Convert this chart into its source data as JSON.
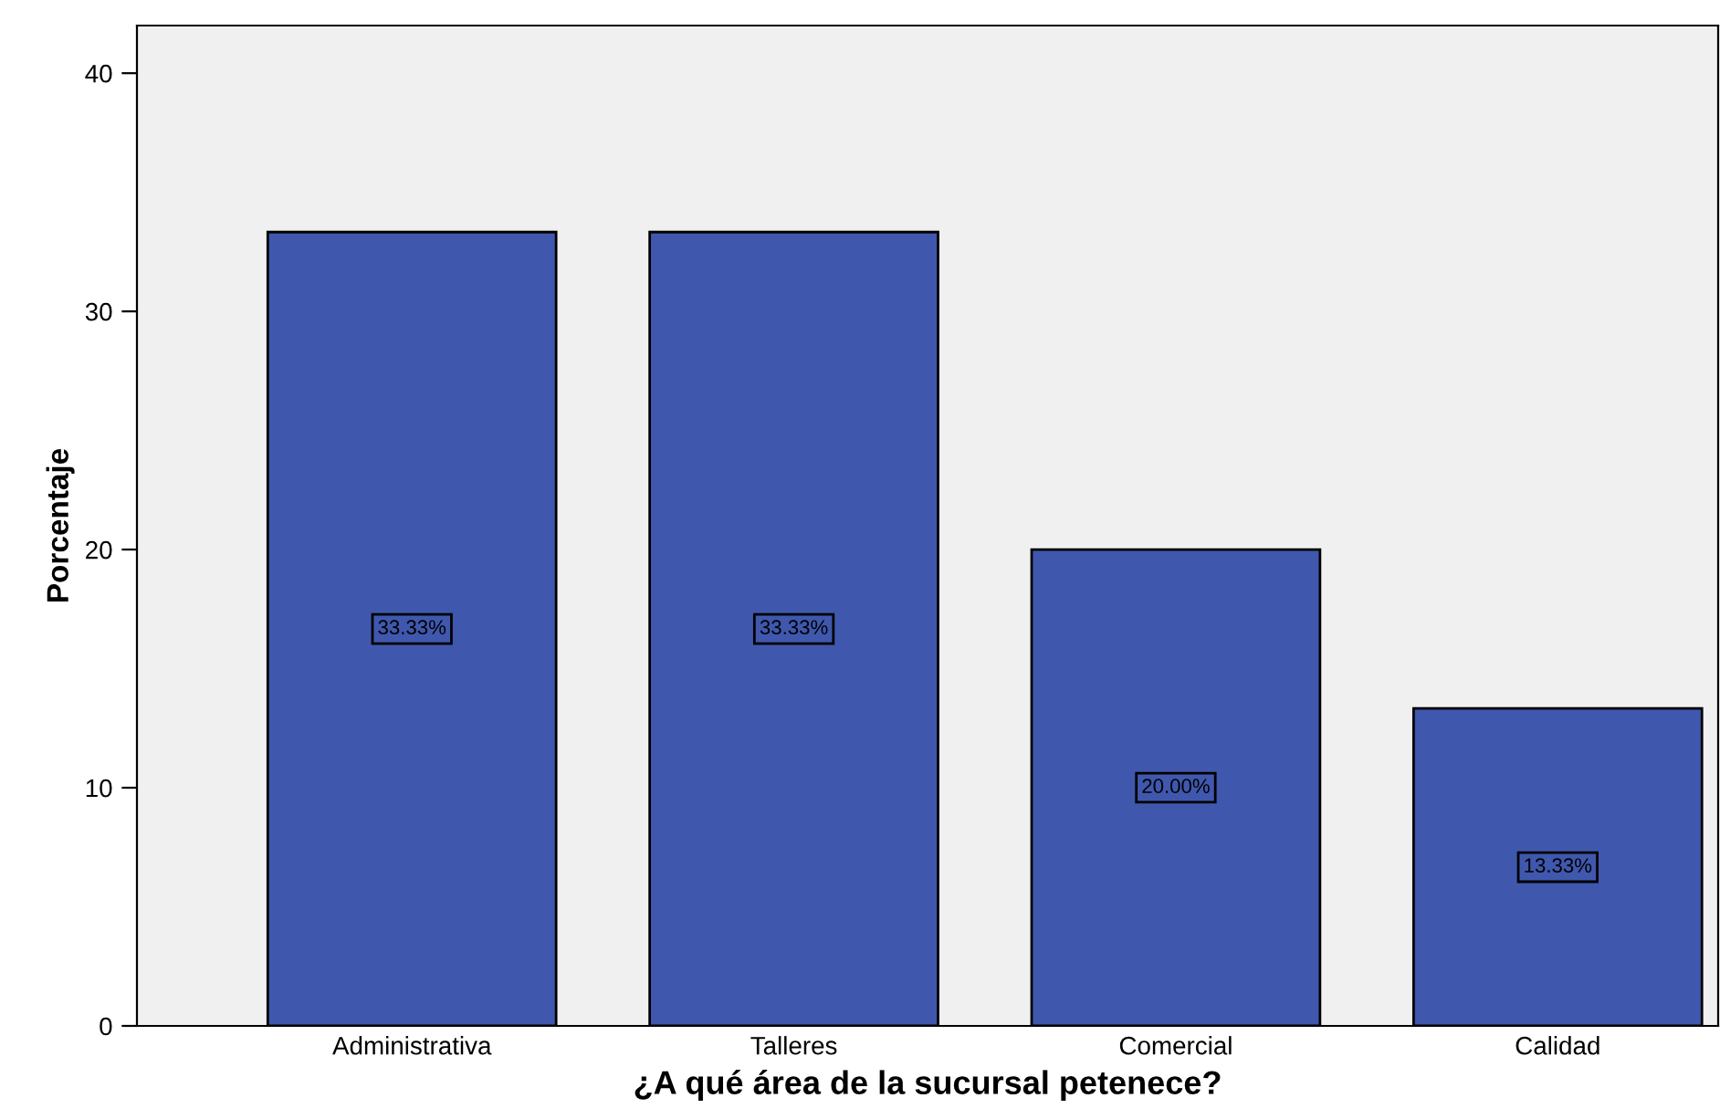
{
  "chart_data": {
    "type": "bar",
    "xlabel": "¿A qué área de la sucursal petenece?",
    "ylabel": "Porcentaje",
    "categories": [
      "Administrativa",
      "Talleres",
      "Comercial",
      "Calidad"
    ],
    "values": [
      33.33,
      33.33,
      20.0,
      13.33
    ],
    "value_labels": [
      "33.33%",
      "33.33%",
      "20.00%",
      "13.33%"
    ],
    "color": "#3f58ae",
    "ylim": [
      0,
      42
    ],
    "yticks": [
      0,
      10,
      20,
      30,
      40
    ],
    "grid": false,
    "legend": false
  }
}
